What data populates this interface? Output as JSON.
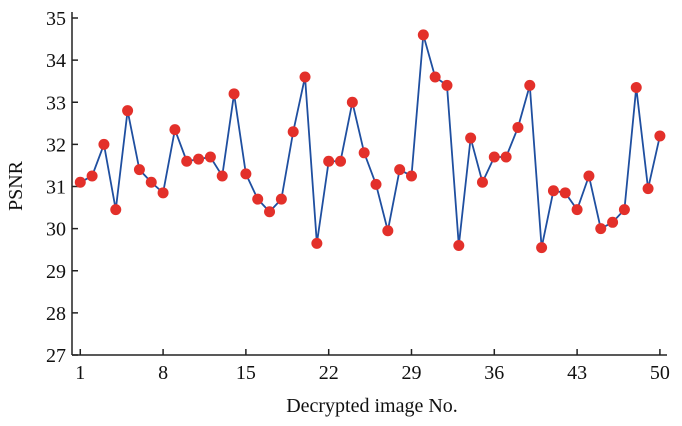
{
  "chart_data": {
    "type": "line",
    "x_label": "Decrypted image No.",
    "y_label": "PSNR",
    "x": [
      1,
      2,
      3,
      4,
      5,
      6,
      7,
      8,
      9,
      10,
      11,
      12,
      13,
      14,
      15,
      16,
      17,
      18,
      19,
      20,
      21,
      22,
      23,
      24,
      25,
      26,
      27,
      28,
      29,
      30,
      31,
      32,
      33,
      34,
      35,
      36,
      37,
      38,
      39,
      40,
      41,
      42,
      43,
      44,
      45,
      46,
      47,
      48,
      49,
      50
    ],
    "series": [
      {
        "name": "PSNR",
        "color": "#1f4fa0",
        "marker_color": "#e3302a",
        "values": [
          31.1,
          31.25,
          32.0,
          30.45,
          32.8,
          31.4,
          31.1,
          30.85,
          32.35,
          31.6,
          31.65,
          31.7,
          31.25,
          33.2,
          31.3,
          30.7,
          30.4,
          30.7,
          32.3,
          33.6,
          29.65,
          31.6,
          31.6,
          33.0,
          31.8,
          31.05,
          29.95,
          31.4,
          31.25,
          34.6,
          33.6,
          33.4,
          29.6,
          32.15,
          31.1,
          31.7,
          31.7,
          32.4,
          33.4,
          29.55,
          30.9,
          30.85,
          30.45,
          31.25,
          30.0,
          30.15,
          30.45,
          33.35,
          30.95,
          32.2
        ]
      }
    ],
    "xlim": [
      0.3,
      50.6
    ],
    "xticks": [
      1,
      8,
      15,
      22,
      29,
      36,
      43,
      50
    ],
    "ylim": [
      27,
      35
    ],
    "yticks": [
      27,
      28,
      29,
      30,
      31,
      32,
      33,
      34,
      35
    ]
  }
}
